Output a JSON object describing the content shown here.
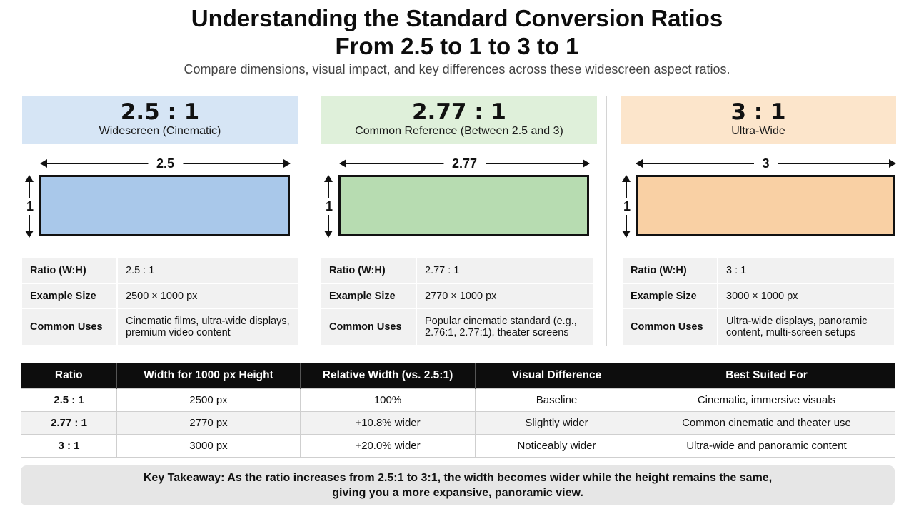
{
  "header": {
    "title_line1": "Understanding the Standard Conversion Ratios",
    "title_line2": "From 2.5 to 1 to 3 to 1",
    "subtitle": "Compare dimensions, visual impact, and key differences across these widescreen aspect ratios."
  },
  "panels": [
    {
      "ratio": "2.5 : 1",
      "label": "Widescreen (Cinematic)",
      "header_color": "#d6e5f5",
      "fill_color": "#a9c8ea",
      "width_label": "2.5",
      "height_label": "1",
      "rows": [
        {
          "key": "Ratio (W:H)",
          "value": "2.5 : 1"
        },
        {
          "key": "Example Size",
          "value": "2500 × 1000 px"
        },
        {
          "key": "Common Uses",
          "value": "Cinematic films, ultra-wide displays, premium video content"
        }
      ]
    },
    {
      "ratio": "2.77 : 1",
      "label": "Common Reference (Between 2.5 and 3)",
      "header_color": "#dff0da",
      "fill_color": "#b7dcb1",
      "width_label": "2.77",
      "height_label": "1",
      "rows": [
        {
          "key": "Ratio (W:H)",
          "value": "2.77 : 1"
        },
        {
          "key": "Example Size",
          "value": "2770 × 1000 px"
        },
        {
          "key": "Common Uses",
          "value": "Popular cinematic standard (e.g., 2.76:1, 2.77:1), theater screens"
        }
      ]
    },
    {
      "ratio": "3 : 1",
      "label": "Ultra-Wide",
      "header_color": "#fce5cb",
      "fill_color": "#f9d0a4",
      "width_label": "3",
      "height_label": "1",
      "rows": [
        {
          "key": "Ratio (W:H)",
          "value": "3 : 1"
        },
        {
          "key": "Example Size",
          "value": "3000 × 1000 px"
        },
        {
          "key": "Common Uses",
          "value": "Ultra-wide displays, panoramic content, multi-screen setups"
        }
      ]
    }
  ],
  "comparison": {
    "headers": [
      "Ratio",
      "Width for 1000 px Height",
      "Relative Width (vs. 2.5:1)",
      "Visual Difference",
      "Best Suited For"
    ],
    "rows": [
      [
        "2.5 : 1",
        "2500 px",
        "100%",
        "Baseline",
        "Cinematic, immersive visuals"
      ],
      [
        "2.77 : 1",
        "2770 px",
        "+10.8% wider",
        "Slightly wider",
        "Common cinematic and theater use"
      ],
      [
        "3 : 1",
        "3000 px",
        "+20.0% wider",
        "Noticeably wider",
        "Ultra-wide and panoramic content"
      ]
    ]
  },
  "takeaway": {
    "line1": "Key Takeaway: As the ratio increases from 2.5:1 to 3:1, the width becomes wider while the height remains the same,",
    "line2": "giving you a more expansive, panoramic view."
  }
}
